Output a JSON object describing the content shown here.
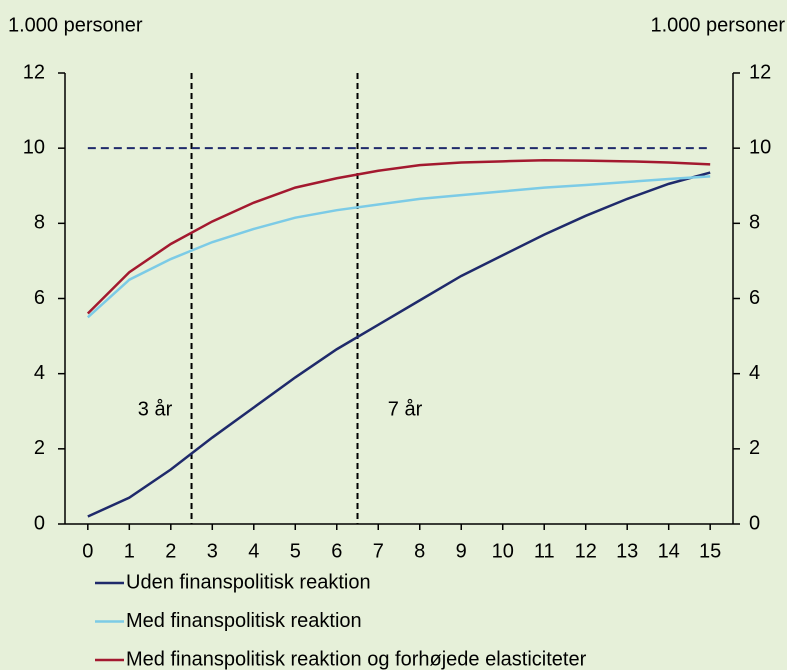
{
  "chart_data": {
    "type": "line",
    "y_label": "1.000 personer",
    "y2_label": "1.000 personer",
    "x": [
      0,
      1,
      2,
      3,
      4,
      5,
      6,
      7,
      8,
      9,
      10,
      11,
      12,
      13,
      14,
      15
    ],
    "series": [
      {
        "name": "Uden finanspolitisk reaktion",
        "color": "#1f2a6b",
        "values": [
          0.2,
          0.7,
          1.45,
          2.3,
          3.1,
          3.9,
          4.65,
          5.3,
          5.95,
          6.6,
          7.15,
          7.7,
          8.2,
          8.65,
          9.05,
          9.35
        ]
      },
      {
        "name": "Med finanspolitisk reaktion",
        "color": "#7ccbe6",
        "values": [
          5.5,
          6.5,
          7.05,
          7.5,
          7.85,
          8.15,
          8.35,
          8.5,
          8.65,
          8.75,
          8.85,
          8.95,
          9.02,
          9.1,
          9.18,
          9.25
        ]
      },
      {
        "name": "Med finanspolitisk reaktion og forhøjede elasticiteter",
        "color": "#a3192f",
        "values": [
          5.6,
          6.7,
          7.45,
          8.05,
          8.55,
          8.95,
          9.2,
          9.4,
          9.55,
          9.62,
          9.65,
          9.68,
          9.67,
          9.65,
          9.62,
          9.57
        ]
      }
    ],
    "reference_lines": {
      "vertical": [
        2.5,
        6.5
      ],
      "horizontal": 10,
      "horizontal_color": "#1f2a6b"
    },
    "annotations": [
      "3 år",
      "7 år"
    ],
    "xlim": [
      -0.55,
      15.55
    ],
    "xticks": [
      0,
      1,
      2,
      3,
      4,
      5,
      6,
      7,
      8,
      9,
      10,
      11,
      12,
      13,
      14,
      15
    ],
    "ylim": [
      0,
      12
    ],
    "yticks": [
      0,
      2,
      4,
      6,
      8,
      10,
      12
    ],
    "y2lim": [
      0,
      12
    ],
    "y2ticks": [
      0,
      2,
      4,
      6,
      8,
      10,
      12
    ]
  }
}
